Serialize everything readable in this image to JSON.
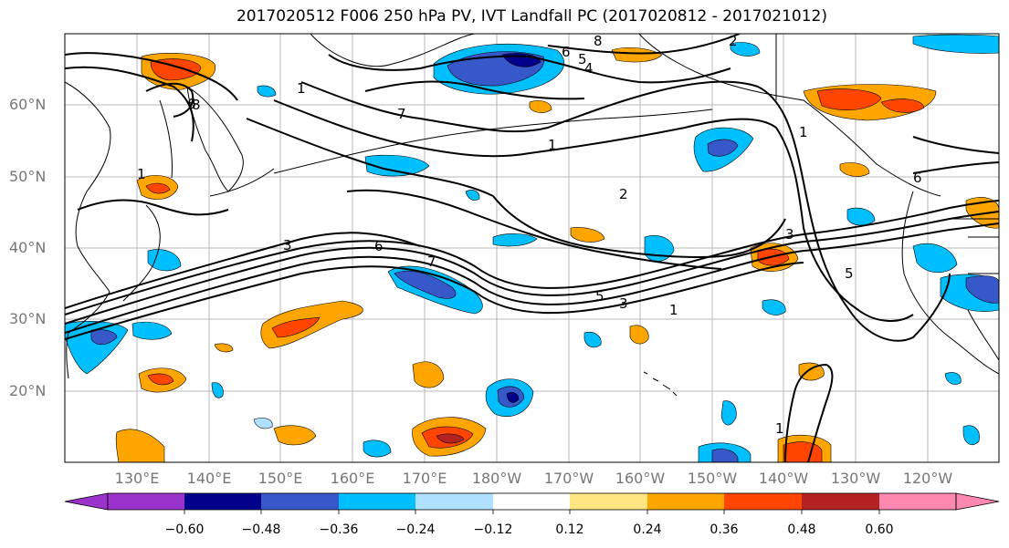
{
  "title": "2017020512 F006 250 hPa PV, IVT Landfall PC (2017020812 - 2017021012)",
  "lat_labels": [
    "60°N",
    "50°N",
    "40°N",
    "30°N",
    "20°N"
  ],
  "lon_labels": [
    "130°E",
    "140°E",
    "150°E",
    "160°E",
    "170°E",
    "180°W",
    "170°W",
    "160°W",
    "150°W",
    "140°W",
    "130°W",
    "120°W"
  ],
  "colorbar": {
    "ticks": [
      "−0.60",
      "−0.48",
      "−0.36",
      "−0.24",
      "−0.12",
      "0.12",
      "0.24",
      "0.36",
      "0.48",
      "0.60"
    ],
    "colors": [
      "#9933cc",
      "#00008b",
      "#3658c9",
      "#00bfff",
      "#b0e0ff",
      "#ffffff",
      "#ffe680",
      "#ffa500",
      "#ff4500",
      "#b22222",
      "#ff88b0"
    ]
  },
  "contour_labels": [
    "8",
    "6",
    "5",
    "4",
    "2",
    "1",
    "7",
    "6",
    "3",
    "5",
    "3",
    "1",
    "1",
    "2",
    "1",
    "6",
    "5",
    "3",
    "7",
    "1",
    "8",
    "6",
    "1"
  ]
}
